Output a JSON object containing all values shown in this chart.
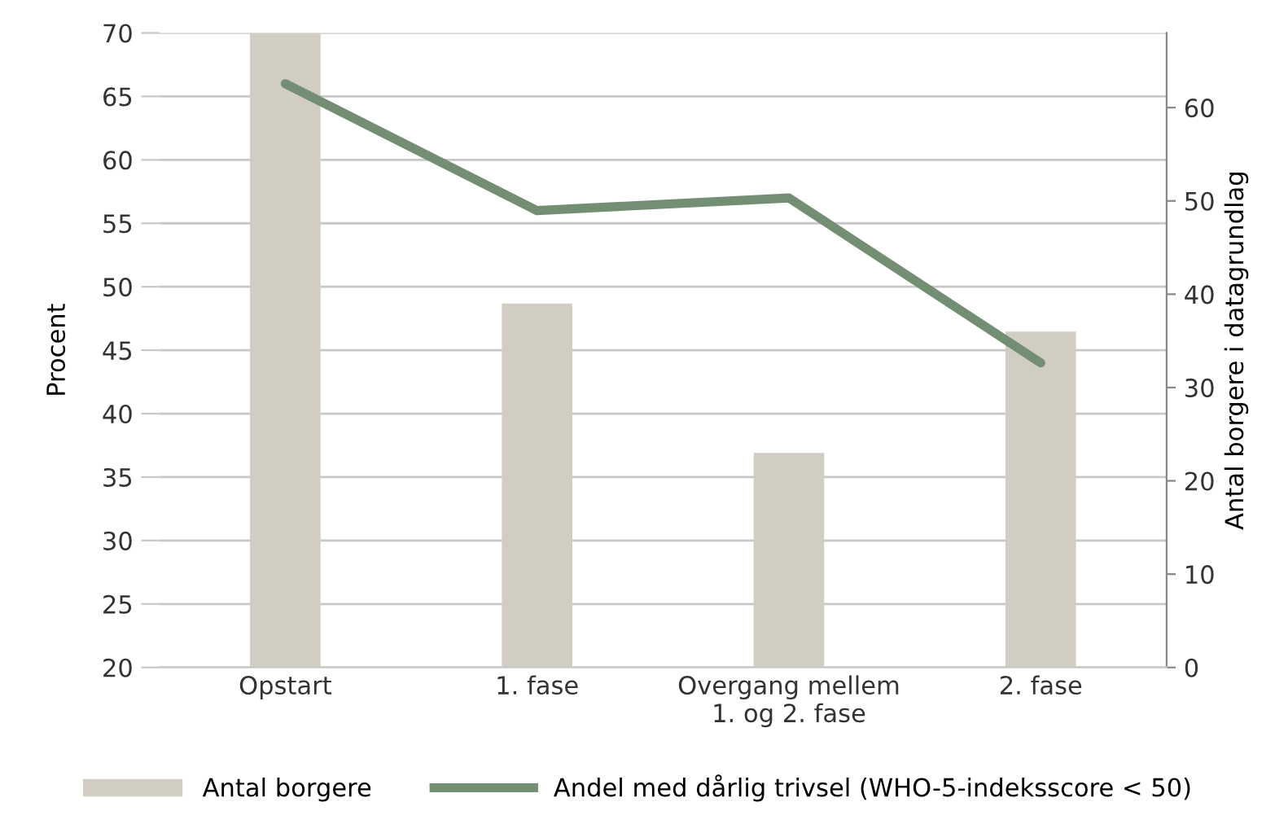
{
  "chart_data": {
    "type": "bar",
    "ylabel": "Procent",
    "y2label": "Antal borgere i datagrundlag",
    "categories": [
      "Opstart",
      "1. fase",
      "Overgang mellem\n1. og 2. fase",
      "2. fase"
    ],
    "series": [
      {
        "name": "Antal borgere",
        "axis": "y2",
        "color": "#d1cdc2",
        "values": [
          68,
          39,
          23,
          36
        ]
      },
      {
        "name": "Andel med dårlig trivsel (WHO-5-indeksscore < 50)",
        "type": "line",
        "axis": "y",
        "color": "#748e74",
        "values": [
          66,
          56,
          57,
          44
        ]
      }
    ],
    "ylim": [
      20,
      70
    ],
    "yticks": [
      20,
      25,
      30,
      35,
      40,
      45,
      50,
      55,
      60,
      65,
      70
    ],
    "y2lim": [
      0,
      68
    ],
    "y2ticks": [
      0,
      10,
      20,
      30,
      40,
      50,
      60
    ],
    "grid": "y",
    "legend": "bottom",
    "marker": "none",
    "line_style": "solid"
  }
}
